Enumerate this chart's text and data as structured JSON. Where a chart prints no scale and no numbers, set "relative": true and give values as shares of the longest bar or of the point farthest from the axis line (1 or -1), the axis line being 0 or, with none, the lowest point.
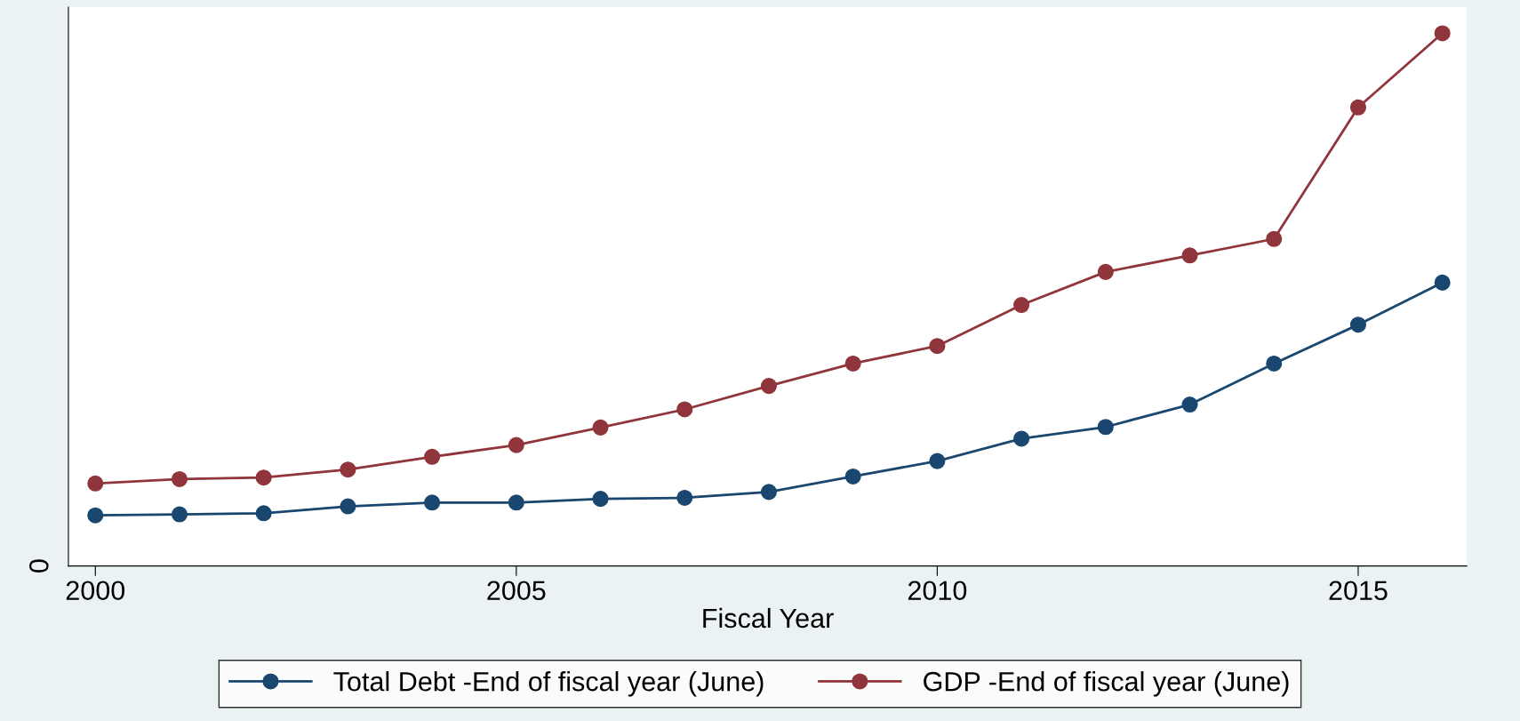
{
  "chart_data": {
    "type": "line",
    "relative": true,
    "xlabel": "Fiscal Year",
    "x": [
      2000,
      2001,
      2002,
      2003,
      2004,
      2005,
      2006,
      2007,
      2008,
      2009,
      2010,
      2011,
      2012,
      2013,
      2014,
      2015,
      2016
    ],
    "series": [
      {
        "name": "Total Debt -End of fiscal year (June)",
        "color": "#1a476f",
        "values": [
          0.095,
          0.097,
          0.099,
          0.112,
          0.119,
          0.119,
          0.126,
          0.128,
          0.139,
          0.168,
          0.197,
          0.239,
          0.261,
          0.303,
          0.38,
          0.453,
          0.532
        ]
      },
      {
        "name": "GDP -End of fiscal year (June)",
        "color": "#90353b",
        "values": [
          0.155,
          0.163,
          0.166,
          0.181,
          0.205,
          0.227,
          0.26,
          0.294,
          0.338,
          0.38,
          0.413,
          0.49,
          0.552,
          0.583,
          0.614,
          0.861,
          1
        ]
      }
    ],
    "xlim": [
      1999.68,
      2016.29
    ],
    "xticks": [
      2000,
      2005,
      2010,
      2015
    ],
    "annotations": [
      "0"
    ],
    "legend": "bottom",
    "marker": "circle",
    "line_style": "solid"
  }
}
